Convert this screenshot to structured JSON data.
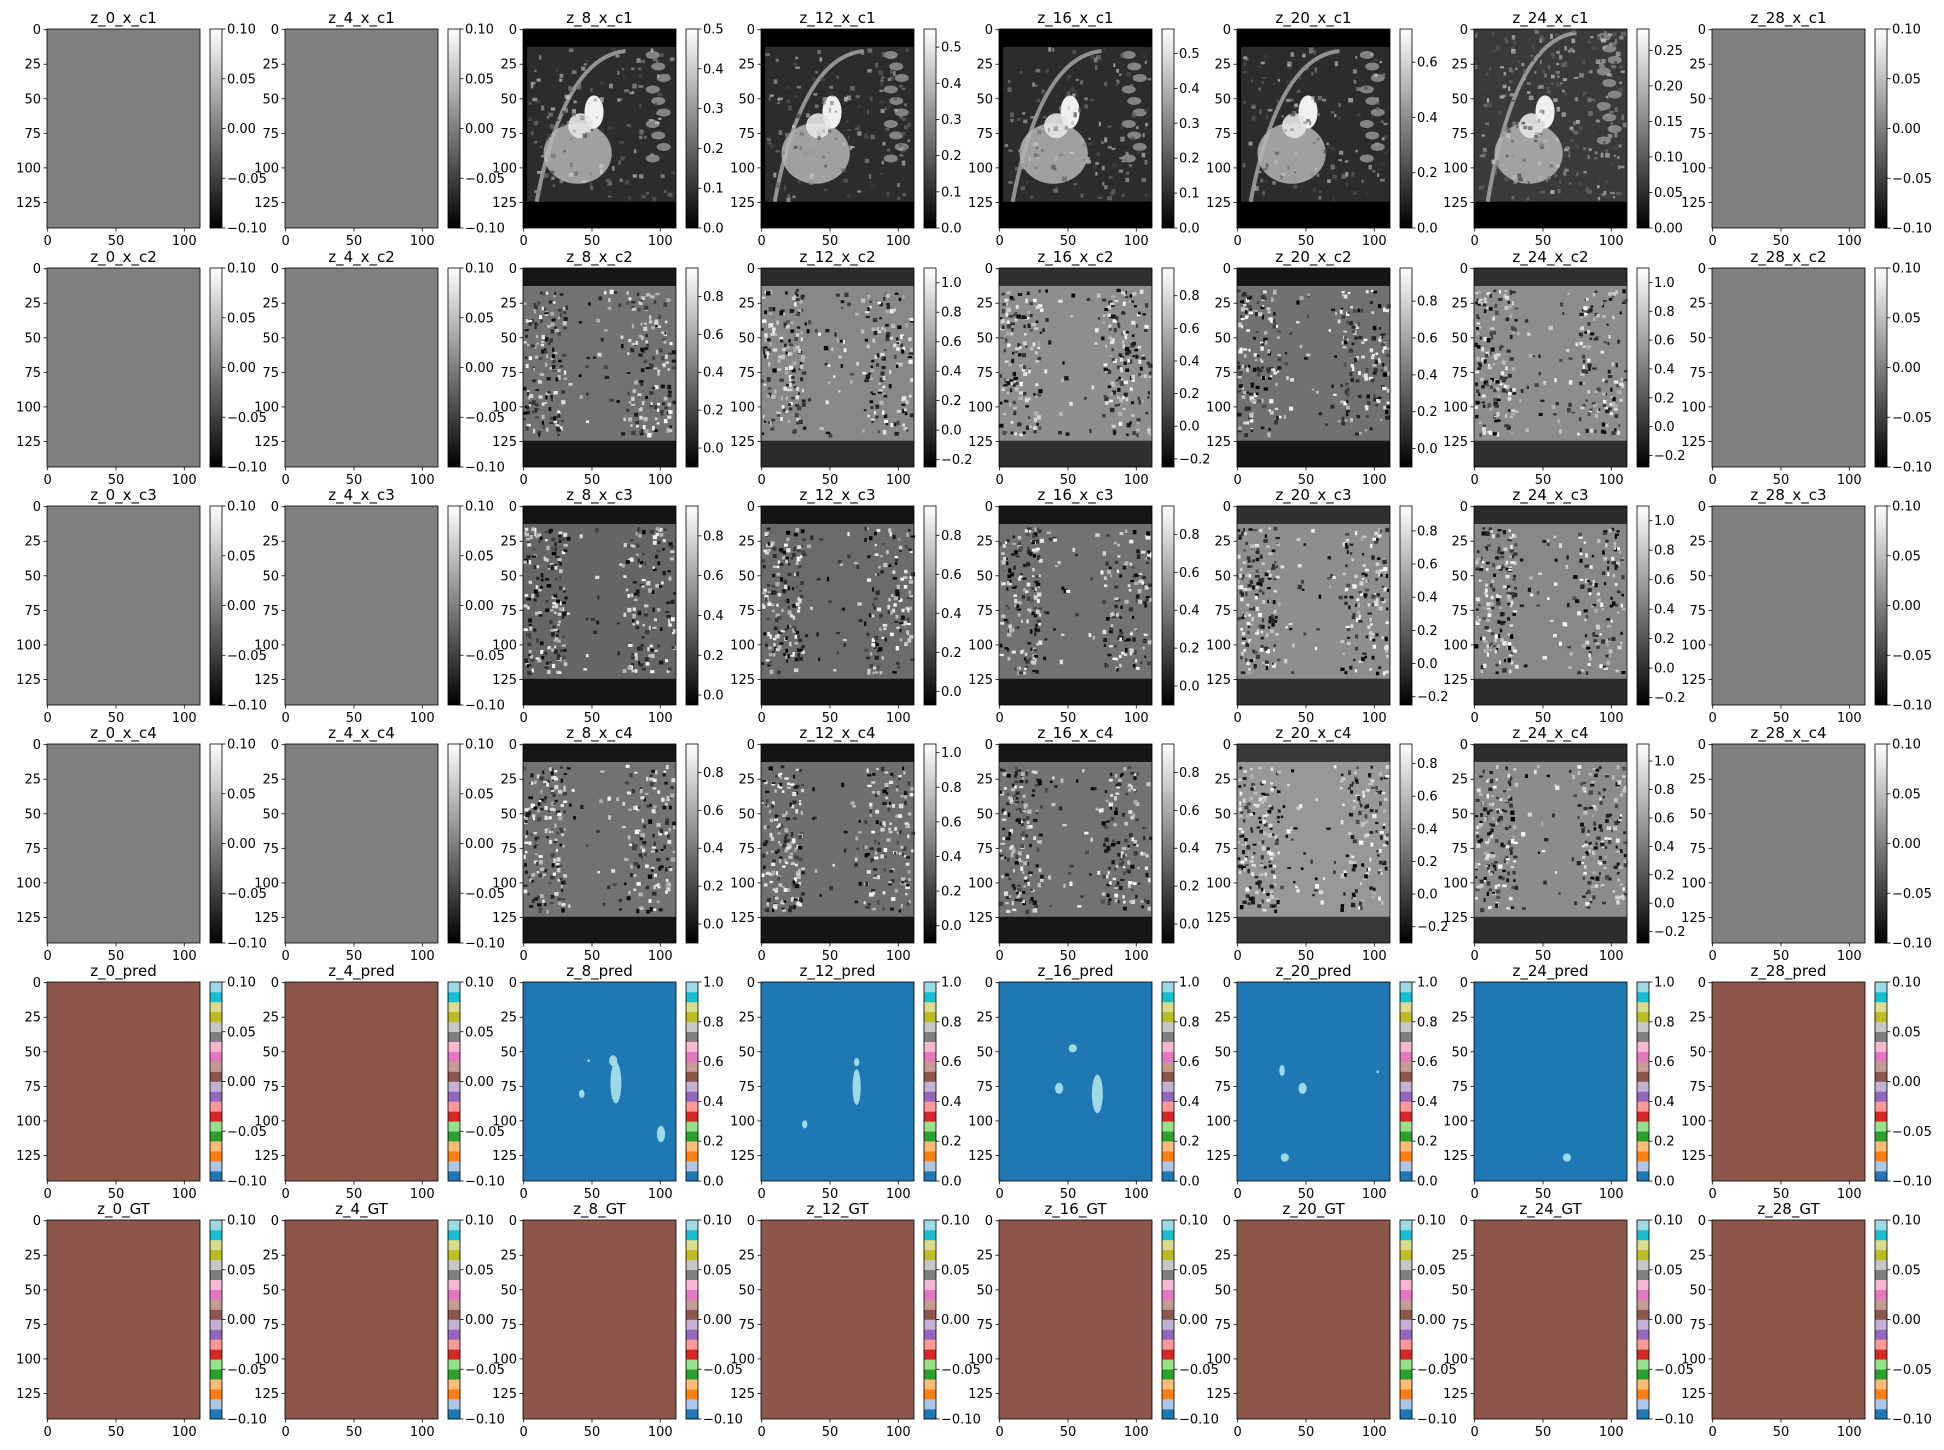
{
  "chart_data": {
    "type": "heatmap",
    "z_labels": [
      "0",
      "4",
      "8",
      "12",
      "16",
      "20",
      "24",
      "28"
    ],
    "row_labels": [
      "x_c1",
      "x_c2",
      "x_c3",
      "x_c4",
      "pred",
      "GT"
    ],
    "x_ticks": [
      0,
      50,
      100
    ],
    "y_ticks": [
      0,
      25,
      50,
      75,
      100,
      125
    ],
    "image_width": 112,
    "image_height": 144,
    "rows": [
      {
        "kind": "mri",
        "cmap": "gray",
        "panels": [
          {
            "title": "z_0_x_c1",
            "content": "uniform",
            "cbar_ticks": [
              "0.10",
              "0.05",
              "0.00",
              "−0.05",
              "−0.10"
            ],
            "cbar_range": [
              -0.1,
              0.1
            ]
          },
          {
            "title": "z_4_x_c1",
            "content": "uniform",
            "cbar_ticks": [
              "0.10",
              "0.05",
              "0.00",
              "−0.05",
              "−0.10"
            ],
            "cbar_range": [
              -0.1,
              0.1
            ]
          },
          {
            "title": "z_8_x_c1",
            "content": "magnitude",
            "cbar_ticks": [
              "0.5",
              "0.4",
              "0.3",
              "0.2",
              "0.1",
              "0.0"
            ],
            "cbar_range": [
              0,
              0.5
            ]
          },
          {
            "title": "z_12_x_c1",
            "content": "magnitude",
            "cbar_ticks": [
              "0.5",
              "0.4",
              "0.3",
              "0.2",
              "0.1",
              "0.0"
            ],
            "cbar_range": [
              0,
              0.55
            ]
          },
          {
            "title": "z_16_x_c1",
            "content": "magnitude",
            "cbar_ticks": [
              "0.5",
              "0.4",
              "0.3",
              "0.2",
              "0.1",
              "0.0"
            ],
            "cbar_range": [
              0,
              0.57
            ]
          },
          {
            "title": "z_20_x_c1",
            "content": "magnitude",
            "cbar_ticks": [
              "0.6",
              "0.4",
              "0.2",
              "0.0"
            ],
            "cbar_range": [
              0,
              0.72
            ]
          },
          {
            "title": "z_24_x_c1",
            "content": "magnitude_noisy",
            "cbar_ticks": [
              "0.25",
              "0.20",
              "0.15",
              "0.10",
              "0.05",
              "0.00"
            ],
            "cbar_range": [
              0,
              0.28
            ]
          },
          {
            "title": "z_28_x_c1",
            "content": "uniform",
            "cbar_ticks": [
              "0.10",
              "0.05",
              "0.00",
              "−0.05",
              "−0.10"
            ],
            "cbar_range": [
              -0.1,
              0.1
            ]
          }
        ]
      },
      {
        "kind": "mri",
        "cmap": "gray",
        "panels": [
          {
            "title": "z_0_x_c2",
            "content": "uniform",
            "cbar_ticks": [
              "0.10",
              "0.05",
              "0.00",
              "−0.05",
              "−0.10"
            ],
            "cbar_range": [
              -0.1,
              0.1
            ]
          },
          {
            "title": "z_4_x_c2",
            "content": "uniform",
            "cbar_ticks": [
              "0.10",
              "0.05",
              "0.00",
              "−0.05",
              "−0.10"
            ],
            "cbar_range": [
              -0.1,
              0.1
            ]
          },
          {
            "title": "z_8_x_c2",
            "content": "phase",
            "cbar_ticks": [
              "0.8",
              "0.6",
              "0.4",
              "0.2",
              "0.0"
            ],
            "cbar_range": [
              -0.1,
              0.95
            ]
          },
          {
            "title": "z_12_x_c2",
            "content": "phase",
            "cbar_ticks": [
              "1.0",
              "0.8",
              "0.6",
              "0.4",
              "0.2",
              "0.0",
              "−0.2"
            ],
            "cbar_range": [
              -0.25,
              1.1
            ]
          },
          {
            "title": "z_16_x_c2",
            "content": "phase",
            "cbar_ticks": [
              "0.8",
              "0.6",
              "0.4",
              "0.2",
              "0.0",
              "−0.2"
            ],
            "cbar_range": [
              -0.25,
              0.97
            ]
          },
          {
            "title": "z_20_x_c2",
            "content": "phase",
            "cbar_ticks": [
              "0.8",
              "0.6",
              "0.4",
              "0.2",
              "0.0"
            ],
            "cbar_range": [
              -0.1,
              0.98
            ]
          },
          {
            "title": "z_24_x_c2",
            "content": "phase",
            "cbar_ticks": [
              "1.0",
              "0.8",
              "0.6",
              "0.4",
              "0.2",
              "0.0",
              "−0.2"
            ],
            "cbar_range": [
              -0.28,
              1.1
            ]
          },
          {
            "title": "z_28_x_c2",
            "content": "uniform",
            "cbar_ticks": [
              "0.10",
              "0.05",
              "0.00",
              "−0.05",
              "−0.10"
            ],
            "cbar_range": [
              -0.1,
              0.1
            ]
          }
        ]
      },
      {
        "kind": "mri",
        "cmap": "gray",
        "panels": [
          {
            "title": "z_0_x_c3",
            "content": "uniform",
            "cbar_ticks": [
              "0.10",
              "0.05",
              "0.00",
              "−0.05",
              "−0.10"
            ],
            "cbar_range": [
              -0.1,
              0.1
            ]
          },
          {
            "title": "z_4_x_c3",
            "content": "uniform",
            "cbar_ticks": [
              "0.10",
              "0.05",
              "0.00",
              "−0.05",
              "−0.10"
            ],
            "cbar_range": [
              -0.1,
              0.1
            ]
          },
          {
            "title": "z_8_x_c3",
            "content": "phase",
            "cbar_ticks": [
              "0.8",
              "0.6",
              "0.4",
              "0.2",
              "0.0"
            ],
            "cbar_range": [
              -0.05,
              0.95
            ]
          },
          {
            "title": "z_12_x_c3",
            "content": "phase",
            "cbar_ticks": [
              "0.8",
              "0.6",
              "0.4",
              "0.2",
              "0.0"
            ],
            "cbar_range": [
              -0.07,
              0.95
            ]
          },
          {
            "title": "z_16_x_c3",
            "content": "phase",
            "cbar_ticks": [
              "0.8",
              "0.6",
              "0.4",
              "0.2",
              "0.0"
            ],
            "cbar_range": [
              -0.1,
              0.95
            ]
          },
          {
            "title": "z_20_x_c3",
            "content": "phase",
            "cbar_ticks": [
              "0.8",
              "0.6",
              "0.4",
              "0.2",
              "0.0",
              "−0.2"
            ],
            "cbar_range": [
              -0.25,
              0.95
            ]
          },
          {
            "title": "z_24_x_c3",
            "content": "phase",
            "cbar_ticks": [
              "1.0",
              "0.8",
              "0.6",
              "0.4",
              "0.2",
              "0.0",
              "−0.2"
            ],
            "cbar_range": [
              -0.25,
              1.1
            ]
          },
          {
            "title": "z_28_x_c3",
            "content": "uniform",
            "cbar_ticks": [
              "0.10",
              "0.05",
              "0.00",
              "−0.05",
              "−0.10"
            ],
            "cbar_range": [
              -0.1,
              0.1
            ]
          }
        ]
      },
      {
        "kind": "mri",
        "cmap": "gray",
        "panels": [
          {
            "title": "z_0_x_c4",
            "content": "uniform",
            "cbar_ticks": [
              "0.10",
              "0.05",
              "0.00",
              "−0.05",
              "−0.10"
            ],
            "cbar_range": [
              -0.1,
              0.1
            ]
          },
          {
            "title": "z_4_x_c4",
            "content": "uniform",
            "cbar_ticks": [
              "0.10",
              "0.05",
              "0.00",
              "−0.05",
              "−0.10"
            ],
            "cbar_range": [
              -0.1,
              0.1
            ]
          },
          {
            "title": "z_8_x_c4",
            "content": "phase",
            "cbar_ticks": [
              "0.8",
              "0.6",
              "0.4",
              "0.2",
              "0.0"
            ],
            "cbar_range": [
              -0.1,
              0.95
            ]
          },
          {
            "title": "z_12_x_c4",
            "content": "phase",
            "cbar_ticks": [
              "1.0",
              "0.8",
              "0.6",
              "0.4",
              "0.2",
              "0.0"
            ],
            "cbar_range": [
              -0.1,
              1.05
            ]
          },
          {
            "title": "z_16_x_c4",
            "content": "phase",
            "cbar_ticks": [
              "0.8",
              "0.6",
              "0.4",
              "0.2",
              "0.0"
            ],
            "cbar_range": [
              -0.1,
              0.95
            ]
          },
          {
            "title": "z_20_x_c4",
            "content": "phase",
            "cbar_ticks": [
              "0.8",
              "0.6",
              "0.4",
              "0.2",
              "0.0",
              "−0.2"
            ],
            "cbar_range": [
              -0.3,
              0.92
            ]
          },
          {
            "title": "z_24_x_c4",
            "content": "phase",
            "cbar_ticks": [
              "1.0",
              "0.8",
              "0.6",
              "0.4",
              "0.2",
              "0.0",
              "−0.2"
            ],
            "cbar_range": [
              -0.28,
              1.12
            ]
          },
          {
            "title": "z_28_x_c4",
            "content": "uniform",
            "cbar_ticks": [
              "0.10",
              "0.05",
              "0.00",
              "−0.05",
              "−0.10"
            ],
            "cbar_range": [
              -0.1,
              0.1
            ]
          }
        ]
      },
      {
        "kind": "seg",
        "cmap": "tab20",
        "panels": [
          {
            "title": "z_0_pred",
            "content": "empty",
            "cbar_ticks": [
              "0.10",
              "0.05",
              "0.00",
              "−0.05",
              "−0.10"
            ],
            "cbar_range": [
              -0.1,
              0.1
            ]
          },
          {
            "title": "z_4_pred",
            "content": "empty",
            "cbar_ticks": [
              "0.10",
              "0.05",
              "0.00",
              "−0.05",
              "−0.10"
            ],
            "cbar_range": [
              -0.1,
              0.1
            ]
          },
          {
            "title": "z_8_pred",
            "content": "mask",
            "cbar_ticks": [
              "1.0",
              "0.8",
              "0.6",
              "0.4",
              "0.2",
              "0.0"
            ],
            "cbar_range": [
              0,
              1
            ],
            "blobs": [
              [
                68,
                73,
                4,
                15
              ],
              [
                66,
                57,
                3,
                4
              ],
              [
                43,
                81,
                2,
                3
              ],
              [
                48,
                57,
                1,
                1
              ],
              [
                101,
                110,
                3,
                6
              ]
            ]
          },
          {
            "title": "z_12_pred",
            "content": "mask",
            "cbar_ticks": [
              "1.0",
              "0.8",
              "0.6",
              "0.4",
              "0.2",
              "0.0"
            ],
            "cbar_range": [
              0,
              1
            ],
            "blobs": [
              [
                70,
                76,
                3,
                13
              ],
              [
                70,
                58,
                2,
                3
              ],
              [
                32,
                103,
                2,
                3
              ]
            ]
          },
          {
            "title": "z_16_pred",
            "content": "mask",
            "cbar_ticks": [
              "1.0",
              "0.8",
              "0.6",
              "0.4",
              "0.2",
              "0.0"
            ],
            "cbar_range": [
              0,
              1
            ],
            "blobs": [
              [
                72,
                81,
                4,
                14
              ],
              [
                54,
                48,
                3,
                3
              ],
              [
                44,
                77,
                3,
                4
              ]
            ]
          },
          {
            "title": "z_20_pred",
            "content": "mask",
            "cbar_ticks": [
              "1.0",
              "0.8",
              "0.6",
              "0.4",
              "0.2",
              "0.0"
            ],
            "cbar_range": [
              0,
              1
            ],
            "blobs": [
              [
                48,
                77,
                3,
                4
              ],
              [
                33,
                64,
                2,
                4
              ],
              [
                35,
                127,
                3,
                3
              ],
              [
                103,
                65,
                1,
                1
              ]
            ]
          },
          {
            "title": "z_24_pred",
            "content": "mask",
            "cbar_ticks": [
              "1.0",
              "0.8",
              "0.6",
              "0.4",
              "0.2",
              "0.0"
            ],
            "cbar_range": [
              0,
              1
            ],
            "blobs": [
              [
                68,
                127,
                3,
                3
              ]
            ]
          },
          {
            "title": "z_28_pred",
            "content": "empty",
            "cbar_ticks": [
              "0.10",
              "0.05",
              "0.00",
              "−0.05",
              "−0.10"
            ],
            "cbar_range": [
              -0.1,
              0.1
            ]
          }
        ]
      },
      {
        "kind": "seg",
        "cmap": "tab20",
        "panels": [
          {
            "title": "z_0_GT",
            "content": "empty",
            "cbar_ticks": [
              "0.10",
              "0.05",
              "0.00",
              "−0.05",
              "−0.10"
            ],
            "cbar_range": [
              -0.1,
              0.1
            ]
          },
          {
            "title": "z_4_GT",
            "content": "empty",
            "cbar_ticks": [
              "0.10",
              "0.05",
              "0.00",
              "−0.05",
              "−0.10"
            ],
            "cbar_range": [
              -0.1,
              0.1
            ]
          },
          {
            "title": "z_8_GT",
            "content": "empty",
            "cbar_ticks": [
              "0.10",
              "0.05",
              "0.00",
              "−0.05",
              "−0.10"
            ],
            "cbar_range": [
              -0.1,
              0.1
            ]
          },
          {
            "title": "z_12_GT",
            "content": "empty",
            "cbar_ticks": [
              "0.10",
              "0.05",
              "0.00",
              "−0.05",
              "−0.10"
            ],
            "cbar_range": [
              -0.1,
              0.1
            ]
          },
          {
            "title": "z_16_GT",
            "content": "empty",
            "cbar_ticks": [
              "0.10",
              "0.05",
              "0.00",
              "−0.05",
              "−0.10"
            ],
            "cbar_range": [
              -0.1,
              0.1
            ]
          },
          {
            "title": "z_20_GT",
            "content": "empty",
            "cbar_ticks": [
              "0.10",
              "0.05",
              "0.00",
              "−0.05",
              "−0.10"
            ],
            "cbar_range": [
              -0.1,
              0.1
            ]
          },
          {
            "title": "z_24_GT",
            "content": "empty",
            "cbar_ticks": [
              "0.10",
              "0.05",
              "0.00",
              "−0.05",
              "−0.10"
            ],
            "cbar_range": [
              -0.1,
              0.1
            ]
          },
          {
            "title": "z_28_GT",
            "content": "empty",
            "cbar_ticks": [
              "0.10",
              "0.05",
              "0.00",
              "−0.05",
              "−0.10"
            ],
            "cbar_range": [
              -0.1,
              0.1
            ]
          }
        ]
      }
    ],
    "colors": {
      "uniform_gray": "#808080",
      "seg_background": "#8c564b",
      "seg_mask_bg": "#1f77b4",
      "seg_mask_fg": "#9edae5",
      "tab20": [
        "#1f77b4",
        "#aec7e8",
        "#ff7f0e",
        "#ffbb78",
        "#2ca02c",
        "#98df8a",
        "#d62728",
        "#ff9896",
        "#9467bd",
        "#c5b0d5",
        "#8c564b",
        "#c49c94",
        "#e377c2",
        "#f7b6d2",
        "#7f7f7f",
        "#c7c7c7",
        "#bcbd22",
        "#dbdb8d",
        "#17becf",
        "#9edae5"
      ]
    }
  }
}
